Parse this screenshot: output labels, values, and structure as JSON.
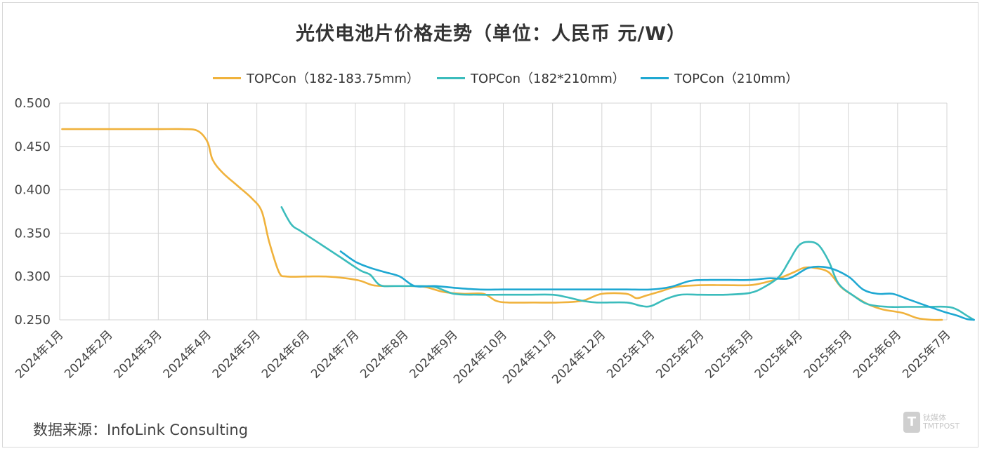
{
  "chart_data": {
    "type": "line",
    "title": "光伏电池片价格走势（单位：人民币 元/W）",
    "xlabel": "",
    "ylabel": "",
    "ylim": [
      0.25,
      0.5
    ],
    "yticks": [
      "0.500",
      "0.450",
      "0.400",
      "0.350",
      "0.300",
      "0.250"
    ],
    "ytick_values": [
      0.5,
      0.45,
      0.4,
      0.35,
      0.3,
      0.25
    ],
    "categories": [
      "2024年1月",
      "2024年2月",
      "2024年3月",
      "2024年4月",
      "2024年5月",
      "2024年6月",
      "2024年7月",
      "2024年8月",
      "2024年9月",
      "2024年10月",
      "2024年11月",
      "2024年12月",
      "2025年1月",
      "2025年2月",
      "2025年3月",
      "2025年4月",
      "2025年5月",
      "2025年6月",
      "2025年7月"
    ],
    "grid": true,
    "legend_position": "top-center",
    "series": [
      {
        "name": "TOPCon（182-183.75mm）",
        "color": "#f0b23c",
        "points": [
          [
            0.05,
            0.47
          ],
          [
            0.5,
            0.47
          ],
          [
            1.0,
            0.47
          ],
          [
            1.5,
            0.47
          ],
          [
            2.0,
            0.47
          ],
          [
            2.5,
            0.47
          ],
          [
            2.8,
            0.468
          ],
          [
            3.0,
            0.455
          ],
          [
            3.1,
            0.435
          ],
          [
            3.3,
            0.42
          ],
          [
            3.6,
            0.405
          ],
          [
            3.9,
            0.39
          ],
          [
            4.1,
            0.375
          ],
          [
            4.25,
            0.34
          ],
          [
            4.45,
            0.305
          ],
          [
            4.6,
            0.3
          ],
          [
            5.0,
            0.3
          ],
          [
            5.4,
            0.3
          ],
          [
            5.8,
            0.298
          ],
          [
            6.1,
            0.295
          ],
          [
            6.35,
            0.29
          ],
          [
            6.6,
            0.289
          ],
          [
            7.0,
            0.289
          ],
          [
            7.4,
            0.288
          ],
          [
            7.8,
            0.282
          ],
          [
            8.2,
            0.28
          ],
          [
            8.6,
            0.28
          ],
          [
            8.85,
            0.272
          ],
          [
            9.1,
            0.27
          ],
          [
            9.6,
            0.27
          ],
          [
            10.1,
            0.27
          ],
          [
            10.6,
            0.272
          ],
          [
            11.0,
            0.28
          ],
          [
            11.5,
            0.28
          ],
          [
            11.7,
            0.275
          ],
          [
            11.9,
            0.278
          ],
          [
            12.2,
            0.283
          ],
          [
            12.5,
            0.288
          ],
          [
            13.0,
            0.29
          ],
          [
            13.5,
            0.29
          ],
          [
            14.0,
            0.29
          ],
          [
            14.3,
            0.293
          ],
          [
            14.6,
            0.298
          ],
          [
            14.9,
            0.305
          ],
          [
            15.1,
            0.31
          ],
          [
            15.3,
            0.31
          ],
          [
            15.6,
            0.305
          ],
          [
            15.85,
            0.288
          ],
          [
            16.1,
            0.278
          ],
          [
            16.4,
            0.268
          ],
          [
            16.7,
            0.262
          ],
          [
            17.1,
            0.258
          ],
          [
            17.4,
            0.252
          ],
          [
            17.7,
            0.25
          ],
          [
            17.9,
            0.25
          ]
        ]
      },
      {
        "name": "TOPCon（182*210mm）",
        "color": "#3bbcbc",
        "points": [
          [
            4.5,
            0.38
          ],
          [
            4.7,
            0.36
          ],
          [
            4.9,
            0.352
          ],
          [
            5.3,
            0.337
          ],
          [
            5.7,
            0.322
          ],
          [
            6.1,
            0.307
          ],
          [
            6.3,
            0.302
          ],
          [
            6.5,
            0.29
          ],
          [
            6.8,
            0.289
          ],
          [
            7.2,
            0.289
          ],
          [
            7.6,
            0.288
          ],
          [
            8.0,
            0.28
          ],
          [
            8.5,
            0.279
          ],
          [
            9.0,
            0.279
          ],
          [
            9.5,
            0.279
          ],
          [
            10.0,
            0.279
          ],
          [
            10.3,
            0.276
          ],
          [
            10.6,
            0.272
          ],
          [
            10.9,
            0.27
          ],
          [
            11.5,
            0.27
          ],
          [
            11.8,
            0.266
          ],
          [
            12.0,
            0.266
          ],
          [
            12.3,
            0.274
          ],
          [
            12.6,
            0.279
          ],
          [
            13.0,
            0.279
          ],
          [
            13.5,
            0.279
          ],
          [
            14.0,
            0.281
          ],
          [
            14.3,
            0.288
          ],
          [
            14.6,
            0.3
          ],
          [
            14.8,
            0.318
          ],
          [
            15.0,
            0.336
          ],
          [
            15.2,
            0.34
          ],
          [
            15.4,
            0.336
          ],
          [
            15.6,
            0.318
          ],
          [
            15.8,
            0.292
          ],
          [
            16.1,
            0.278
          ],
          [
            16.4,
            0.268
          ],
          [
            16.8,
            0.265
          ],
          [
            17.2,
            0.265
          ],
          [
            17.6,
            0.265
          ],
          [
            18.0,
            0.265
          ],
          [
            18.2,
            0.262
          ],
          [
            18.4,
            0.255
          ],
          [
            18.55,
            0.25
          ]
        ]
      },
      {
        "name": "TOPCon（210mm）",
        "color": "#1fa8d2",
        "points": [
          [
            5.7,
            0.329
          ],
          [
            6.0,
            0.317
          ],
          [
            6.3,
            0.31
          ],
          [
            6.6,
            0.305
          ],
          [
            6.9,
            0.3
          ],
          [
            7.2,
            0.289
          ],
          [
            7.6,
            0.289
          ],
          [
            8.0,
            0.287
          ],
          [
            8.5,
            0.285
          ],
          [
            9.0,
            0.285
          ],
          [
            9.5,
            0.285
          ],
          [
            10.0,
            0.285
          ],
          [
            10.5,
            0.285
          ],
          [
            11.0,
            0.285
          ],
          [
            11.5,
            0.285
          ],
          [
            12.0,
            0.285
          ],
          [
            12.4,
            0.288
          ],
          [
            12.8,
            0.295
          ],
          [
            13.2,
            0.296
          ],
          [
            13.6,
            0.296
          ],
          [
            14.0,
            0.296
          ],
          [
            14.4,
            0.298
          ],
          [
            14.8,
            0.298
          ],
          [
            15.2,
            0.31
          ],
          [
            15.6,
            0.31
          ],
          [
            16.0,
            0.3
          ],
          [
            16.3,
            0.285
          ],
          [
            16.6,
            0.28
          ],
          [
            16.9,
            0.28
          ],
          [
            17.2,
            0.274
          ],
          [
            17.5,
            0.268
          ],
          [
            17.9,
            0.26
          ],
          [
            18.2,
            0.255
          ],
          [
            18.4,
            0.251
          ],
          [
            18.55,
            0.25
          ]
        ]
      }
    ]
  },
  "footer": {
    "source": "数据来源：InfoLink Consulting"
  },
  "watermark": {
    "logo": "T",
    "text_line1": "钛媒体",
    "text_line2": "TMTPOST"
  }
}
